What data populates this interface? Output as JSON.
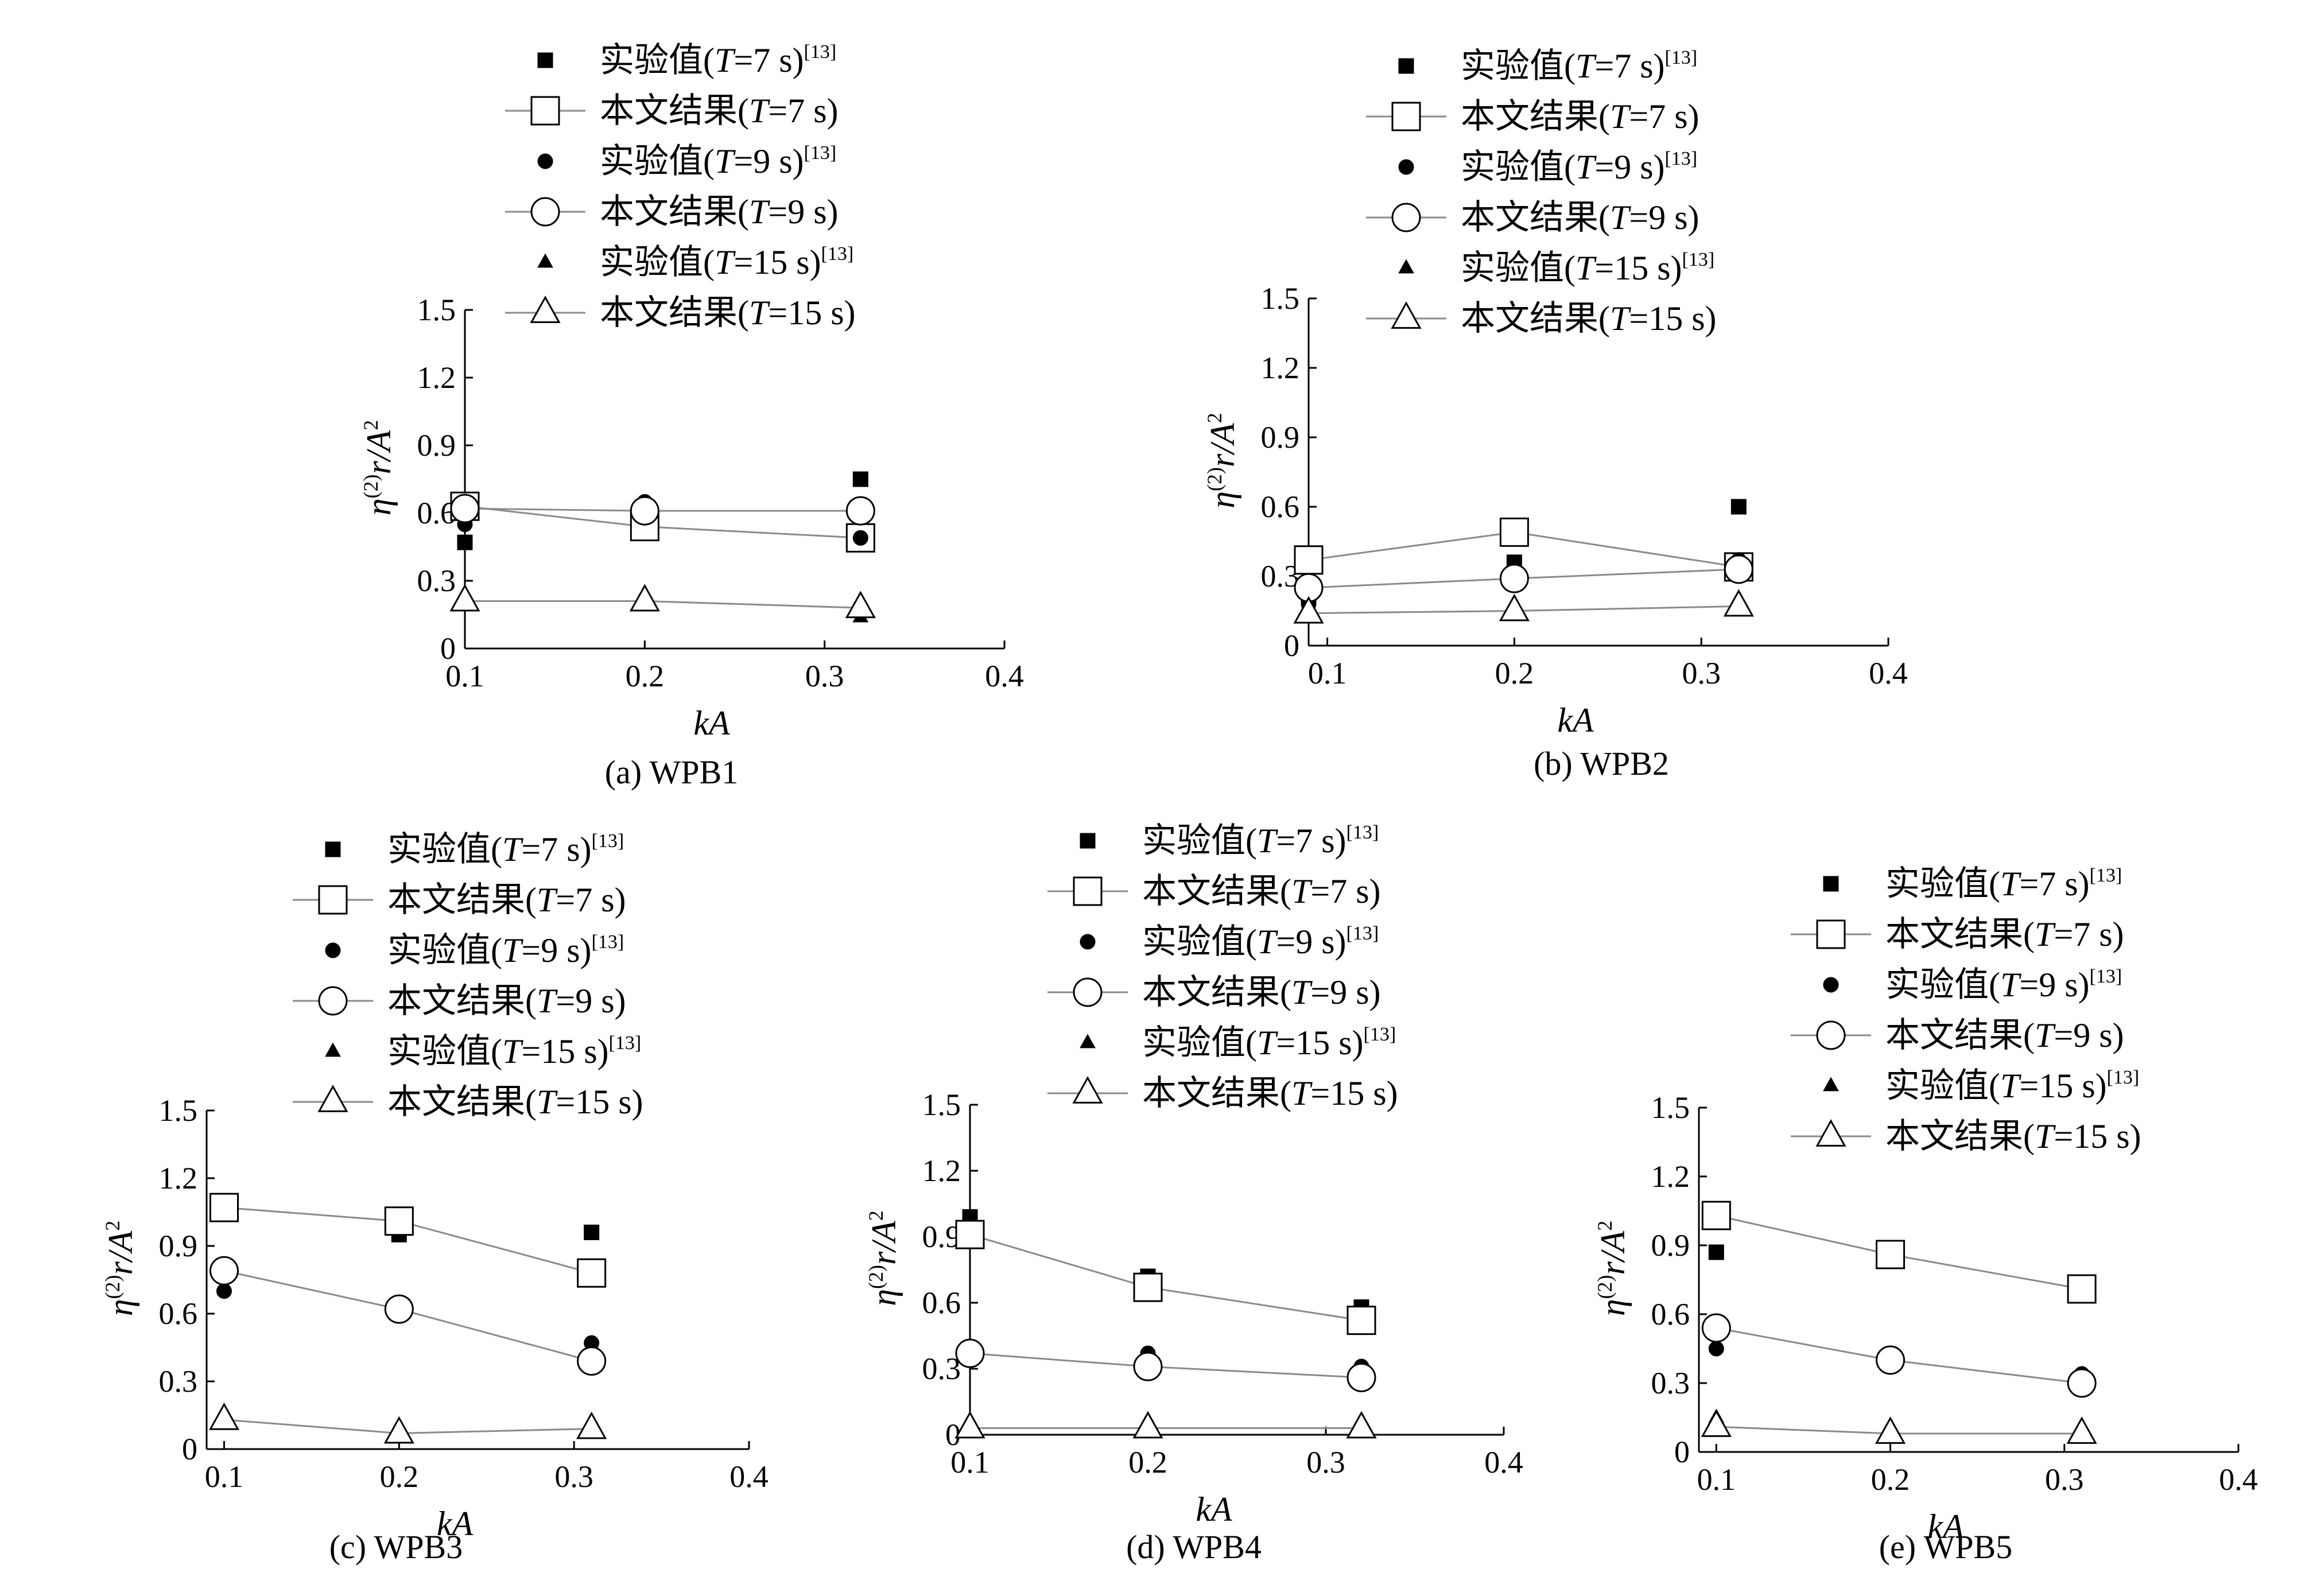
{
  "chart_data": [
    {
      "type": "scatter",
      "caption": "(a) WPB1",
      "xlabel": "kA",
      "ylabel": "η(2)r/A2",
      "xlim": [
        0.1,
        0.4
      ],
      "ylim": [
        0,
        1.5
      ],
      "x_ticks": [
        "0.1",
        "0.2",
        "0.3",
        "0.4"
      ],
      "y_ticks": [
        "0",
        "0.3",
        "0.6",
        "0.9",
        "1.2",
        "1.5"
      ],
      "series": [
        {
          "name": "实验值(T=7 s)[13]",
          "kind": "experiment",
          "marker": "square-filled",
          "x": [
            0.1,
            0.2,
            0.32
          ],
          "y": [
            0.47,
            0.55,
            0.75
          ]
        },
        {
          "name": "本文结果(T=7 s)",
          "kind": "computed",
          "marker": "square-open",
          "x": [
            0.1,
            0.2,
            0.32
          ],
          "y": [
            0.63,
            0.54,
            0.49
          ]
        },
        {
          "name": "实验值(T=9 s)[13]",
          "kind": "experiment",
          "marker": "circle-filled",
          "x": [
            0.1,
            0.2,
            0.32
          ],
          "y": [
            0.55,
            0.65,
            0.49
          ]
        },
        {
          "name": "本文结果(T=9 s)",
          "kind": "computed",
          "marker": "circle-open",
          "x": [
            0.1,
            0.2,
            0.32
          ],
          "y": [
            0.62,
            0.61,
            0.61
          ]
        },
        {
          "name": "实验值(T=15 s)[13]",
          "kind": "experiment",
          "marker": "triangle-filled",
          "x": [
            0.1,
            0.2,
            0.32
          ],
          "y": [
            0.19,
            0.21,
            0.14
          ]
        },
        {
          "name": "本文结果(T=15 s)",
          "kind": "computed",
          "marker": "triangle-open",
          "x": [
            0.1,
            0.2,
            0.32
          ],
          "y": [
            0.21,
            0.21,
            0.18
          ]
        }
      ]
    },
    {
      "type": "scatter",
      "caption": "(b) WPB2",
      "xlabel": "kA",
      "ylabel": "η(2)r/A2",
      "xlim": [
        0.09,
        0.4
      ],
      "ylim": [
        0,
        1.5
      ],
      "x_ticks": [
        "0.1",
        "0.2",
        "0.3",
        "0.4"
      ],
      "y_ticks": [
        "0",
        "0.3",
        "0.6",
        "0.9",
        "1.2",
        "1.5"
      ],
      "series": [
        {
          "name": "实验值(T=7 s)[13]",
          "kind": "experiment",
          "marker": "square-filled",
          "x": [
            0.09,
            0.2,
            0.32
          ],
          "y": [
            0.22,
            0.36,
            0.6
          ]
        },
        {
          "name": "本文结果(T=7 s)",
          "kind": "computed",
          "marker": "square-open",
          "x": [
            0.09,
            0.2,
            0.32
          ],
          "y": [
            0.37,
            0.49,
            0.34
          ]
        },
        {
          "name": "实验值(T=9 s)[13]",
          "kind": "experiment",
          "marker": "circle-filled",
          "x": [
            0.09,
            0.2,
            0.32
          ],
          "y": [
            0.18,
            0.28,
            0.37
          ]
        },
        {
          "name": "本文结果(T=9 s)",
          "kind": "computed",
          "marker": "circle-open",
          "x": [
            0.09,
            0.2,
            0.32
          ],
          "y": [
            0.25,
            0.29,
            0.33
          ]
        },
        {
          "name": "实验值(T=15 s)[13]",
          "kind": "experiment",
          "marker": "triangle-filled",
          "x": [
            0.09,
            0.2,
            0.32
          ],
          "y": [
            0.15,
            0.18,
            0.19
          ]
        },
        {
          "name": "本文结果(T=15 s)",
          "kind": "computed",
          "marker": "triangle-open",
          "x": [
            0.09,
            0.2,
            0.32
          ],
          "y": [
            0.14,
            0.15,
            0.17
          ]
        }
      ]
    },
    {
      "type": "scatter",
      "caption": "(c) WPB3",
      "xlabel": "kA",
      "ylabel": "η(2)r/A2",
      "xlim": [
        0.09,
        0.4
      ],
      "ylim": [
        0,
        1.5
      ],
      "x_ticks": [
        "0.1",
        "0.2",
        "0.3",
        "0.4"
      ],
      "y_ticks": [
        "0",
        "0.3",
        "0.6",
        "0.9",
        "1.2",
        "1.5"
      ],
      "series": [
        {
          "name": "实验值(T=7 s)[13]",
          "kind": "experiment",
          "marker": "square-filled",
          "x": [
            0.1,
            0.2,
            0.31
          ],
          "y": [
            1.1,
            0.95,
            0.96
          ]
        },
        {
          "name": "本文结果(T=7 s)",
          "kind": "computed",
          "marker": "square-open",
          "x": [
            0.1,
            0.2,
            0.31
          ],
          "y": [
            1.07,
            1.01,
            0.78
          ]
        },
        {
          "name": "实验值(T=9 s)[13]",
          "kind": "experiment",
          "marker": "circle-filled",
          "x": [
            0.1,
            0.2,
            0.31
          ],
          "y": [
            0.7,
            0.61,
            0.47
          ]
        },
        {
          "name": "本文结果(T=9 s)",
          "kind": "computed",
          "marker": "circle-open",
          "x": [
            0.1,
            0.2,
            0.31
          ],
          "y": [
            0.79,
            0.62,
            0.39
          ]
        },
        {
          "name": "实验值(T=15 s)[13]",
          "kind": "experiment",
          "marker": "triangle-filled",
          "x": [
            0.1,
            0.2,
            0.31
          ],
          "y": [
            0.16,
            0.06,
            0.1
          ]
        },
        {
          "name": "本文结果(T=15 s)",
          "kind": "computed",
          "marker": "triangle-open",
          "x": [
            0.1,
            0.2,
            0.31
          ],
          "y": [
            0.13,
            0.07,
            0.09
          ]
        }
      ]
    },
    {
      "type": "scatter",
      "caption": "(d) WPB4",
      "xlabel": "kA",
      "ylabel": "η(2)r/A2",
      "xlim": [
        0.1,
        0.4
      ],
      "ylim": [
        0,
        1.5
      ],
      "x_ticks": [
        "0.1",
        "0.2",
        "0.3",
        "0.4"
      ],
      "y_ticks": [
        "0",
        "0.3",
        "0.6",
        "0.9",
        "1.2",
        "1.5"
      ],
      "series": [
        {
          "name": "实验值(T=7 s)[13]",
          "kind": "experiment",
          "marker": "square-filled",
          "x": [
            0.1,
            0.2,
            0.32
          ],
          "y": [
            0.99,
            0.72,
            0.58
          ]
        },
        {
          "name": "本文结果(T=7 s)",
          "kind": "computed",
          "marker": "square-open",
          "x": [
            0.1,
            0.2,
            0.32
          ],
          "y": [
            0.91,
            0.67,
            0.52
          ]
        },
        {
          "name": "实验值(T=9 s)[13]",
          "kind": "experiment",
          "marker": "circle-filled",
          "x": [
            0.1,
            0.2,
            0.32
          ],
          "y": [
            0.4,
            0.37,
            0.31
          ]
        },
        {
          "name": "本文结果(T=9 s)",
          "kind": "computed",
          "marker": "circle-open",
          "x": [
            0.1,
            0.2,
            0.32
          ],
          "y": [
            0.37,
            0.31,
            0.26
          ]
        },
        {
          "name": "实验值(T=15 s)[13]",
          "kind": "experiment",
          "marker": "triangle-filled",
          "x": [
            0.1,
            0.2,
            0.32
          ],
          "y": [
            0.06,
            0.06,
            0.06
          ]
        },
        {
          "name": "本文结果(T=15 s)",
          "kind": "computed",
          "marker": "triangle-open",
          "x": [
            0.1,
            0.2,
            0.32
          ],
          "y": [
            0.03,
            0.03,
            0.03
          ]
        }
      ]
    },
    {
      "type": "scatter",
      "caption": "(e) WPB5",
      "xlabel": "kA",
      "ylabel": "η(2)r/A2",
      "xlim": [
        0.09,
        0.4
      ],
      "ylim": [
        0,
        1.5
      ],
      "x_ticks": [
        "0.1",
        "0.2",
        "0.3",
        "0.4"
      ],
      "y_ticks": [
        "0",
        "0.3",
        "0.6",
        "0.9",
        "1.2",
        "1.5"
      ],
      "series": [
        {
          "name": "实验值(T=7 s)[13]",
          "kind": "experiment",
          "marker": "square-filled",
          "x": [
            0.1,
            0.2,
            0.31
          ],
          "y": [
            0.87,
            0.88,
            0.73
          ]
        },
        {
          "name": "本文结果(T=7 s)",
          "kind": "computed",
          "marker": "square-open",
          "x": [
            0.1,
            0.2,
            0.31
          ],
          "y": [
            1.03,
            0.86,
            0.71
          ]
        },
        {
          "name": "实验值(T=9 s)[13]",
          "kind": "experiment",
          "marker": "circle-filled",
          "x": [
            0.1,
            0.2,
            0.31
          ],
          "y": [
            0.45,
            0.39,
            0.34
          ]
        },
        {
          "name": "本文结果(T=9 s)",
          "kind": "computed",
          "marker": "circle-open",
          "x": [
            0.1,
            0.2,
            0.31
          ],
          "y": [
            0.54,
            0.4,
            0.3
          ]
        },
        {
          "name": "实验值(T=15 s)[13]",
          "kind": "experiment",
          "marker": "triangle-filled",
          "x": [
            0.1,
            0.2,
            0.31
          ],
          "y": [
            0.15,
            0.11,
            0.1
          ]
        },
        {
          "name": "本文结果(T=15 s)",
          "kind": "computed",
          "marker": "triangle-open",
          "x": [
            0.1,
            0.2,
            0.31
          ],
          "y": [
            0.11,
            0.08,
            0.08
          ]
        }
      ]
    }
  ]
}
